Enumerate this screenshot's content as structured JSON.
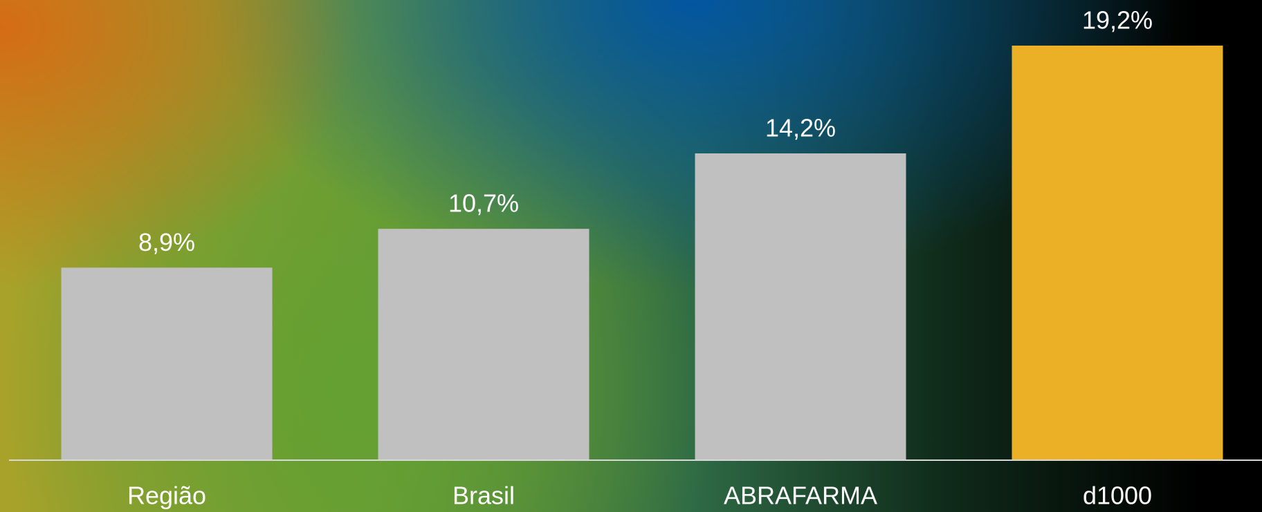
{
  "chart_data": {
    "type": "bar",
    "categories": [
      "Região",
      "Brasil",
      "ABRAFARMA",
      "d1000"
    ],
    "values": [
      8.9,
      10.7,
      14.2,
      19.2
    ],
    "value_labels": [
      "8,9%",
      "10,7%",
      "14,2%",
      "19,2%"
    ],
    "colors": [
      "#c0c0c0",
      "#c0c0c0",
      "#c0c0c0",
      "#ebb026"
    ],
    "grid": false
  }
}
